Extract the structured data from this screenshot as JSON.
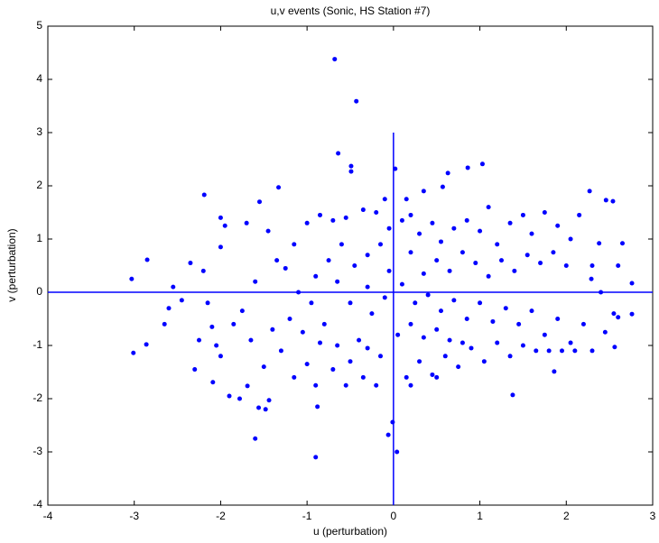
{
  "chart_data": {
    "type": "scatter",
    "title": "u,v events (Sonic, HS Station #7)",
    "x_label": "u (perturbation)",
    "y_label": "v (perturbation)",
    "color": "#0000ff",
    "xlim": [
      -4,
      3
    ],
    "ylim": [
      -4,
      5
    ],
    "xticks": [
      -4,
      -3,
      -2,
      -1,
      0,
      1,
      2,
      3
    ],
    "yticks": [
      -4,
      -3,
      -2,
      -1,
      0,
      1,
      2,
      3,
      4,
      5
    ],
    "grid": false,
    "reference_lines": [
      {
        "axis": "y",
        "value": 0
      },
      {
        "axis": "x",
        "value": 0,
        "to": 3
      }
    ],
    "x": [
      -0.68,
      -0.43,
      -0.64,
      -0.49,
      -0.49,
      -1.33,
      -2.19,
      0.02,
      1.03,
      0.86,
      0.63,
      0.57,
      -3.03,
      -2.85,
      -3.01,
      -2.86,
      -0.9,
      -1.6,
      -0.06,
      0.04,
      -0.01,
      2.76,
      2.76,
      2.6,
      2.65,
      2.54,
      2.46,
      2.56,
      2.38,
      2.29,
      2.27,
      1.86,
      1.38,
      -1.44,
      -1.69,
      -1.56,
      -2.09,
      -0.88,
      -1.48,
      -1.78,
      -2.0,
      -2.05,
      -2.1,
      -2.15,
      -2.2,
      -2.0,
      -1.95,
      -2.0,
      -1.7,
      -1.55,
      -1.45,
      -1.35,
      -1.6,
      -1.75,
      -1.65,
      -1.5,
      -1.3,
      -1.2,
      -1.1,
      -1.25,
      -1.15,
      -1.0,
      -0.85,
      -0.7,
      -0.55,
      -0.35,
      -0.2,
      -0.1,
      -0.05,
      -0.15,
      -0.3,
      -0.45,
      -0.6,
      -0.75,
      -0.9,
      -0.95,
      -0.8,
      -0.65,
      -0.5,
      -0.35,
      -0.2,
      -0.55,
      -0.7,
      -0.4,
      -0.25,
      -0.1,
      -0.05,
      -0.3,
      -0.5,
      -0.65,
      -0.85,
      -1.0,
      -1.05,
      -1.4,
      -1.85,
      -2.35,
      -2.45,
      -2.6,
      -2.55,
      -2.65,
      -2.3,
      -2.25,
      -1.9,
      0.1,
      0.2,
      0.15,
      0.35,
      0.3,
      0.45,
      0.55,
      0.7,
      0.85,
      1.0,
      1.1,
      1.2,
      1.35,
      1.5,
      1.6,
      1.75,
      1.9,
      2.05,
      2.15,
      2.0,
      1.85,
      1.7,
      1.55,
      1.4,
      1.25,
      1.1,
      0.95,
      0.8,
      0.65,
      0.5,
      0.35,
      0.2,
      0.1,
      0.25,
      0.4,
      0.55,
      0.7,
      0.85,
      1.0,
      1.15,
      1.3,
      1.45,
      1.6,
      1.75,
      1.9,
      2.05,
      2.2,
      2.3,
      2.1,
      1.95,
      1.8,
      1.65,
      1.5,
      1.35,
      1.2,
      1.05,
      0.9,
      0.75,
      0.6,
      0.45,
      0.3,
      0.15,
      0.05,
      0.2,
      0.35,
      0.5,
      0.65,
      0.8,
      0.2,
      0.5,
      -0.15,
      -0.3,
      -0.9,
      -1.15,
      2.55,
      2.4,
      2.3,
      2.45,
      2.6
    ],
    "y": [
      4.38,
      3.59,
      2.61,
      2.37,
      2.27,
      1.97,
      1.83,
      2.32,
      2.41,
      2.34,
      2.24,
      1.98,
      0.25,
      0.61,
      -1.14,
      -0.98,
      -3.1,
      -2.75,
      -2.68,
      -3.0,
      -2.44,
      0.17,
      -0.41,
      -0.47,
      0.92,
      1.71,
      1.73,
      -1.03,
      0.92,
      0.25,
      1.9,
      -1.49,
      -1.93,
      -2.03,
      -1.76,
      -2.17,
      -1.69,
      -2.15,
      -2.2,
      -2.0,
      -1.2,
      -1.0,
      -0.65,
      -0.2,
      0.4,
      0.85,
      1.25,
      1.4,
      1.3,
      1.7,
      1.15,
      0.6,
      0.2,
      -0.35,
      -0.9,
      -1.4,
      -1.1,
      -0.5,
      0.0,
      0.45,
      0.9,
      1.3,
      1.45,
      1.35,
      1.4,
      1.55,
      1.5,
      1.75,
      1.2,
      0.9,
      0.7,
      0.5,
      0.9,
      0.6,
      0.3,
      -0.2,
      -0.6,
      -1.0,
      -1.3,
      -1.6,
      -1.75,
      -1.75,
      -1.45,
      -0.9,
      -0.4,
      -0.1,
      0.4,
      0.1,
      -0.2,
      0.2,
      -0.95,
      -1.35,
      -0.75,
      -0.7,
      -0.6,
      0.55,
      -0.15,
      -0.3,
      0.1,
      -0.6,
      -1.45,
      -0.9,
      -1.95,
      1.35,
      1.45,
      1.75,
      1.9,
      1.1,
      1.3,
      0.95,
      1.2,
      1.35,
      1.15,
      1.6,
      0.9,
      1.3,
      1.45,
      1.1,
      1.5,
      1.25,
      1.0,
      1.45,
      0.5,
      0.75,
      0.55,
      0.7,
      0.4,
      0.6,
      0.3,
      0.55,
      0.75,
      0.4,
      0.6,
      0.35,
      0.75,
      0.15,
      -0.2,
      -0.05,
      -0.35,
      -0.15,
      -0.5,
      -0.2,
      -0.55,
      -0.3,
      -0.6,
      -0.35,
      -0.8,
      -0.5,
      -0.95,
      -0.6,
      -1.1,
      -1.1,
      -1.1,
      -1.1,
      -1.1,
      -1.0,
      -1.2,
      -0.95,
      -1.3,
      -1.05,
      -1.4,
      -1.2,
      -1.55,
      -1.3,
      -1.6,
      -0.8,
      -0.6,
      -0.85,
      -0.7,
      -0.9,
      -0.95,
      -1.75,
      -1.6,
      -1.2,
      -1.05,
      -1.75,
      -1.6,
      -0.4,
      0.0,
      0.5,
      -0.75,
      0.5
    ]
  }
}
